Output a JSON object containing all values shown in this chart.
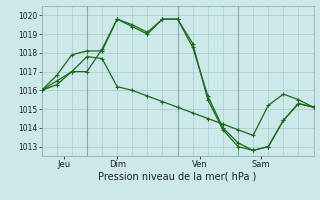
{
  "title": "Pression niveau de la mer( hPa )",
  "bg_color": "#cce8e8",
  "grid_color": "#aacccc",
  "line_color": "#1a6b1a",
  "xlim": [
    0,
    9.0
  ],
  "ylim": [
    1012.5,
    1020.5
  ],
  "yticks": [
    1013,
    1014,
    1015,
    1016,
    1017,
    1018,
    1019,
    1020
  ],
  "day_labels": [
    "Jeu",
    "Dim",
    "Ven",
    "Sam"
  ],
  "day_positions": [
    0.75,
    2.5,
    5.25,
    7.25
  ],
  "vlines": [
    1.5,
    4.5,
    6.5
  ],
  "series1_x": [
    0,
    0.5,
    1.0,
    1.5,
    2.0,
    2.5,
    3.0,
    3.5,
    4.0,
    4.5,
    5.0,
    5.5,
    6.0,
    6.5,
    7.0,
    7.5,
    8.0,
    8.5,
    9.0
  ],
  "series1_y": [
    1016.0,
    1016.5,
    1017.0,
    1017.0,
    1018.2,
    1019.8,
    1019.5,
    1019.1,
    1019.8,
    1019.8,
    1018.3,
    1015.7,
    1014.0,
    1013.2,
    1012.8,
    1013.0,
    1014.4,
    1015.3,
    1015.1
  ],
  "series2_x": [
    0,
    0.5,
    1.0,
    1.5,
    2.0,
    2.5,
    3.0,
    3.5,
    4.0,
    4.5,
    5.0,
    5.5,
    6.0,
    6.5,
    7.0,
    7.5,
    8.0,
    8.5,
    9.0
  ],
  "series2_y": [
    1016.0,
    1016.8,
    1017.9,
    1018.1,
    1018.1,
    1019.8,
    1019.4,
    1019.0,
    1019.8,
    1019.8,
    1018.5,
    1015.5,
    1013.9,
    1013.0,
    1012.8,
    1013.0,
    1014.4,
    1015.3,
    1015.1
  ],
  "series3_x": [
    0,
    0.5,
    1.0,
    1.5,
    2.0,
    2.5,
    3.0,
    3.5,
    4.0,
    4.5,
    5.0,
    5.5,
    6.0,
    6.5,
    7.0,
    7.5,
    8.0,
    8.5,
    9.0
  ],
  "series3_y": [
    1016.0,
    1016.3,
    1017.0,
    1017.8,
    1017.7,
    1016.2,
    1016.0,
    1015.7,
    1015.4,
    1015.1,
    1014.8,
    1014.5,
    1014.2,
    1013.9,
    1013.6,
    1015.2,
    1015.8,
    1015.5,
    1015.1
  ],
  "ylabel_fontsize": 6.5,
  "tick_fontsize": 5.5,
  "xlabel_fontsize": 7.0,
  "linewidth": 0.9,
  "markersize": 3.0
}
